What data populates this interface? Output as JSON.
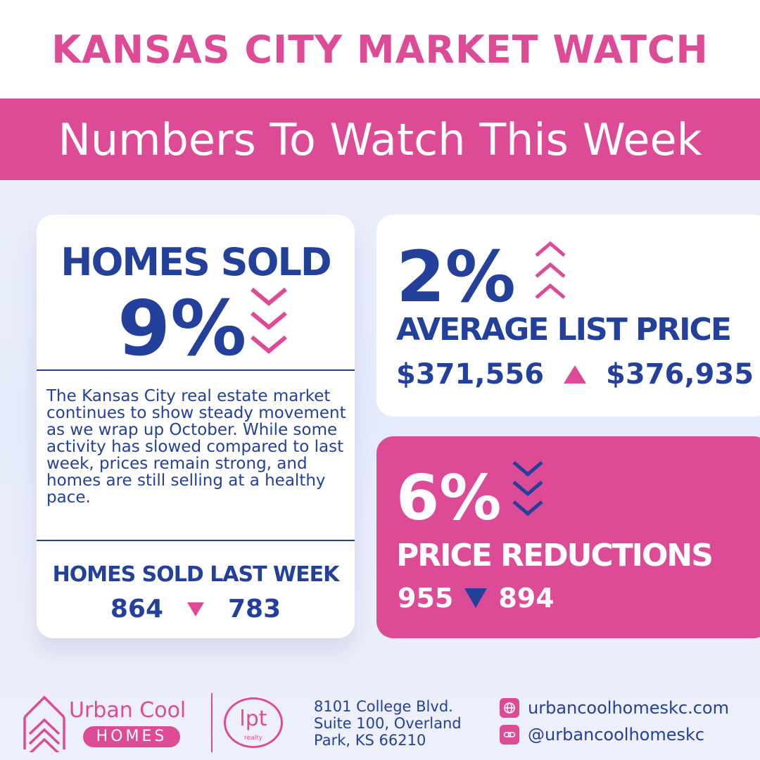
{
  "header": {
    "title": "KANSAS CITY MARKET WATCH",
    "subtitle": "Numbers To Watch This Week"
  },
  "homes_sold": {
    "heading": "HOMES SOLD",
    "percent": "9%",
    "trend": "down",
    "body": "The Kansas City real estate market continues to show steady movement as we wrap up October. While some activity has slowed compared to last week, prices remain strong, and homes are still selling at a healthy pace.",
    "last_week_label": "HOMES SOLD LAST WEEK",
    "previous": "864",
    "current": "783"
  },
  "avg_list_price": {
    "percent": "2%",
    "trend": "up",
    "label": "AVERAGE LIST PRICE",
    "previous": "$371,556",
    "current": "$376,935"
  },
  "price_reductions": {
    "percent": "6%",
    "trend": "down",
    "label": "PRICE REDUCTIONS",
    "previous": "955",
    "current": "894"
  },
  "footer": {
    "brand_line1": "Urban Cool",
    "brand_line2": "HOMES",
    "partner_logo": "lpt",
    "partner_sub": "realty",
    "address_line1": "8101 College Blvd.",
    "address_line2": "Suite 100, Overland",
    "address_line3": "Park, KS 66210",
    "website": "urbancoolhomeskc.com",
    "social": "@urbancoolhomeskc"
  },
  "colors": {
    "pink": "#dd4b97",
    "navy": "#23409b",
    "white": "#ffffff"
  },
  "icons": {
    "down_chevrons": "triple-chevron-down-icon",
    "up_chevrons": "triple-chevron-up-icon",
    "web": "globe-icon",
    "link": "link-icon"
  }
}
